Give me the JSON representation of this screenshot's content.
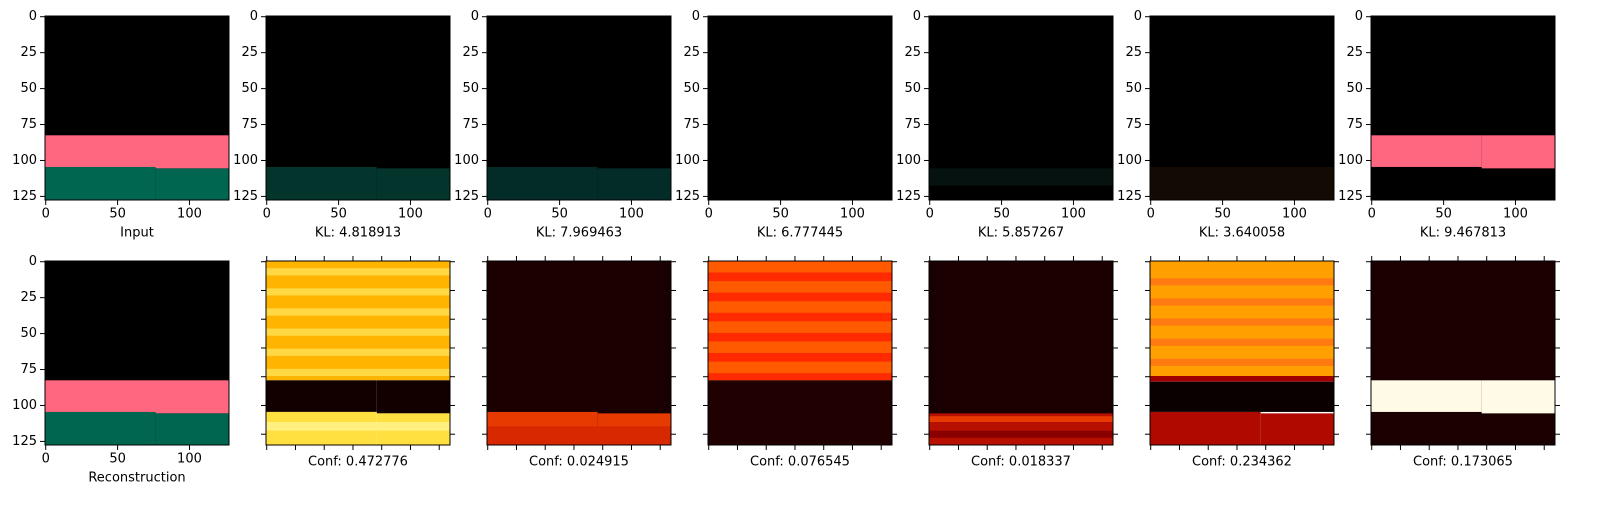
{
  "chart_data": [
    {
      "type": "image",
      "xlabel": "Input",
      "xlim": [
        -0.5,
        127.5
      ],
      "ylim": [
        127.5,
        -0.5
      ],
      "xticks": [
        0,
        50,
        100
      ],
      "yticks": [
        0,
        25,
        50,
        75,
        100,
        125
      ],
      "tick_labels": true,
      "ticks_all_sides": false
    },
    {
      "type": "image",
      "xlabel": "KL: 4.818913",
      "xlim": [
        -0.5,
        127.5
      ],
      "ylim": [
        127.5,
        -0.5
      ],
      "xticks": [
        0,
        50,
        100
      ],
      "yticks": [
        0,
        25,
        50,
        75,
        100,
        125
      ],
      "tick_labels": true,
      "ticks_all_sides": false
    },
    {
      "type": "image",
      "xlabel": "KL: 7.969463",
      "xlim": [
        -0.5,
        127.5
      ],
      "ylim": [
        127.5,
        -0.5
      ],
      "xticks": [
        0,
        50,
        100
      ],
      "yticks": [
        0,
        25,
        50,
        75,
        100,
        125
      ],
      "tick_labels": true,
      "ticks_all_sides": false
    },
    {
      "type": "image",
      "xlabel": "KL: 6.777445",
      "xlim": [
        -0.5,
        127.5
      ],
      "ylim": [
        127.5,
        -0.5
      ],
      "xticks": [
        0,
        50,
        100
      ],
      "yticks": [
        0,
        25,
        50,
        75,
        100,
        125
      ],
      "tick_labels": true,
      "ticks_all_sides": false
    },
    {
      "type": "image",
      "xlabel": "KL: 5.857267",
      "xlim": [
        -0.5,
        127.5
      ],
      "ylim": [
        127.5,
        -0.5
      ],
      "xticks": [
        0,
        50,
        100
      ],
      "yticks": [
        0,
        25,
        50,
        75,
        100,
        125
      ],
      "tick_labels": true,
      "ticks_all_sides": false
    },
    {
      "type": "image",
      "xlabel": "KL: 3.640058",
      "xlim": [
        -0.5,
        127.5
      ],
      "ylim": [
        127.5,
        -0.5
      ],
      "xticks": [
        0,
        50,
        100
      ],
      "yticks": [
        0,
        25,
        50,
        75,
        100,
        125
      ],
      "tick_labels": true,
      "ticks_all_sides": false
    },
    {
      "type": "image",
      "xlabel": "KL: 9.467813",
      "xlim": [
        -0.5,
        127.5
      ],
      "ylim": [
        127.5,
        -0.5
      ],
      "xticks": [
        0,
        50,
        100
      ],
      "yticks": [
        0,
        25,
        50,
        75,
        100,
        125
      ],
      "tick_labels": true,
      "ticks_all_sides": false
    },
    {
      "type": "image",
      "xlabel": "Reconstruction",
      "xlim": [
        -0.5,
        127.5
      ],
      "ylim": [
        127.5,
        -0.5
      ],
      "xticks": [
        0,
        50,
        100
      ],
      "yticks": [
        0,
        25,
        50,
        75,
        100,
        125
      ],
      "tick_labels": true,
      "ticks_all_sides": false
    },
    {
      "type": "image",
      "xlabel": "Conf: 0.472776",
      "xlim": [
        -0.5,
        127.5
      ],
      "ylim": [
        127.5,
        -0.5
      ],
      "xticks": [
        0,
        20,
        40,
        60,
        80,
        100,
        120
      ],
      "yticks": [
        0,
        20,
        40,
        60,
        80,
        100,
        120
      ],
      "tick_labels": false,
      "ticks_all_sides": true
    },
    {
      "type": "image",
      "xlabel": "Conf: 0.024915",
      "xlim": [
        -0.5,
        127.5
      ],
      "ylim": [
        127.5,
        -0.5
      ],
      "xticks": [
        0,
        20,
        40,
        60,
        80,
        100,
        120
      ],
      "yticks": [
        0,
        20,
        40,
        60,
        80,
        100,
        120
      ],
      "tick_labels": false,
      "ticks_all_sides": true
    },
    {
      "type": "image",
      "xlabel": "Conf: 0.076545",
      "xlim": [
        -0.5,
        127.5
      ],
      "ylim": [
        127.5,
        -0.5
      ],
      "xticks": [
        0,
        20,
        40,
        60,
        80,
        100,
        120
      ],
      "yticks": [
        0,
        20,
        40,
        60,
        80,
        100,
        120
      ],
      "tick_labels": false,
      "ticks_all_sides": true
    },
    {
      "type": "image",
      "xlabel": "Conf: 0.018337",
      "xlim": [
        -0.5,
        127.5
      ],
      "ylim": [
        127.5,
        -0.5
      ],
      "xticks": [
        0,
        20,
        40,
        60,
        80,
        100,
        120
      ],
      "yticks": [
        0,
        20,
        40,
        60,
        80,
        100,
        120
      ],
      "tick_labels": false,
      "ticks_all_sides": true
    },
    {
      "type": "image",
      "xlabel": "Conf: 0.234362",
      "xlim": [
        -0.5,
        127.5
      ],
      "ylim": [
        127.5,
        -0.5
      ],
      "xticks": [
        0,
        20,
        40,
        60,
        80,
        100,
        120
      ],
      "yticks": [
        0,
        20,
        40,
        60,
        80,
        100,
        120
      ],
      "tick_labels": false,
      "ticks_all_sides": true
    },
    {
      "type": "image",
      "xlabel": "Conf: 0.173065",
      "xlim": [
        -0.5,
        127.5
      ],
      "ylim": [
        127.5,
        -0.5
      ],
      "xticks": [
        0,
        20,
        40,
        60,
        80,
        100,
        120
      ],
      "yticks": [
        0,
        20,
        40,
        60,
        80,
        100,
        120
      ],
      "tick_labels": false,
      "ticks_all_sides": true
    }
  ]
}
